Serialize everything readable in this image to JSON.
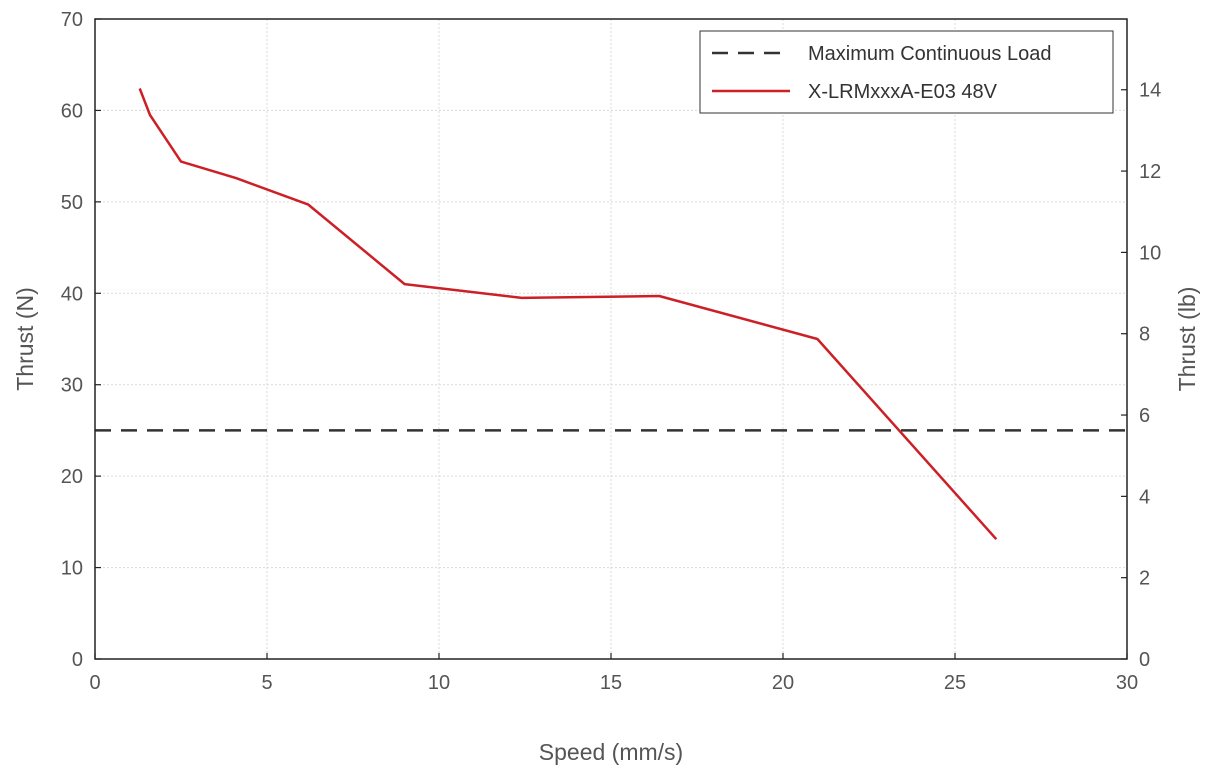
{
  "chart_data": {
    "type": "line",
    "xlabel": "Speed (mm/s)",
    "ylabel": "Thrust (N)",
    "ylabel_right": "Thrust (lb)",
    "xlim": [
      0,
      30
    ],
    "ylim": [
      0,
      70
    ],
    "ylim_right": [
      0,
      15.74
    ],
    "x_ticks": [
      "0",
      "5",
      "10",
      "15",
      "20",
      "25",
      "30"
    ],
    "y_ticks": [
      "0",
      "10",
      "20",
      "30",
      "40",
      "50",
      "60",
      "70"
    ],
    "y_right_ticks": [
      "0",
      "2",
      "4",
      "6",
      "8",
      "10",
      "12",
      "14"
    ],
    "grid": true,
    "legend_position": "top-right",
    "series": [
      {
        "name": "Maximum Continuous Load",
        "color": "#333333",
        "style": "dashed",
        "x": [
          0,
          30
        ],
        "y": [
          25,
          25
        ]
      },
      {
        "name": "X-LRMxxxA-E03 48V",
        "color": "#cc2026",
        "style": "solid",
        "x": [
          1.3,
          1.6,
          2.5,
          4.1,
          6.2,
          9.0,
          12.4,
          16.4,
          21.0,
          26.2
        ],
        "y": [
          62.4,
          59.5,
          54.4,
          52.6,
          49.7,
          41.0,
          39.5,
          39.7,
          35.0,
          13.1
        ]
      }
    ]
  }
}
